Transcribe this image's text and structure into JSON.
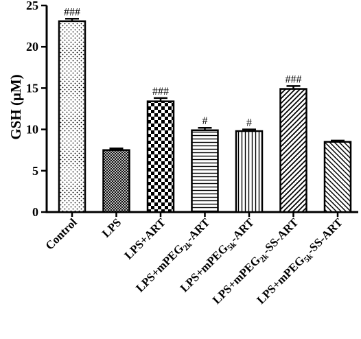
{
  "chart_data": {
    "type": "bar",
    "ylabel": "GSH (μM)",
    "ylim": [
      0,
      25
    ],
    "yticks": [
      0,
      5,
      10,
      15,
      20,
      25
    ],
    "categories": [
      {
        "label": "Control"
      },
      {
        "label": "LPS"
      },
      {
        "label": "LPS+ART"
      },
      {
        "label": "LPS+mPEG2k-ART",
        "parts": [
          [
            "LPS+mPEG",
            false
          ],
          [
            "2k",
            true
          ],
          [
            "-ART",
            false
          ]
        ]
      },
      {
        "label": "LPS+mPEG5k-ART",
        "parts": [
          [
            "LPS+mPEG",
            false
          ],
          [
            "5k",
            true
          ],
          [
            "-ART",
            false
          ]
        ]
      },
      {
        "label": "LPS+mPEG2k-SS-ART",
        "parts": [
          [
            "LPS+mPEG",
            false
          ],
          [
            "2k",
            true
          ],
          [
            "-SS-ART",
            false
          ]
        ]
      },
      {
        "label": "LPS+mPEG5k-SS-ART",
        "parts": [
          [
            "LPS+mPEG",
            false
          ],
          [
            "5k",
            true
          ],
          [
            "-SS-ART",
            false
          ]
        ]
      }
    ],
    "values": [
      23.1,
      7.5,
      13.4,
      9.9,
      9.8,
      14.9,
      8.5
    ],
    "errors": [
      0.3,
      0.2,
      0.4,
      0.3,
      0.2,
      0.35,
      0.15
    ],
    "annotations": [
      "###",
      "",
      "###",
      "#",
      "#",
      "###",
      ""
    ],
    "patterns": [
      "dots",
      "crosshatch",
      "checker",
      "hlines",
      "vlines",
      "diag-right",
      "diag-left"
    ],
    "bar_color": "#000000"
  }
}
